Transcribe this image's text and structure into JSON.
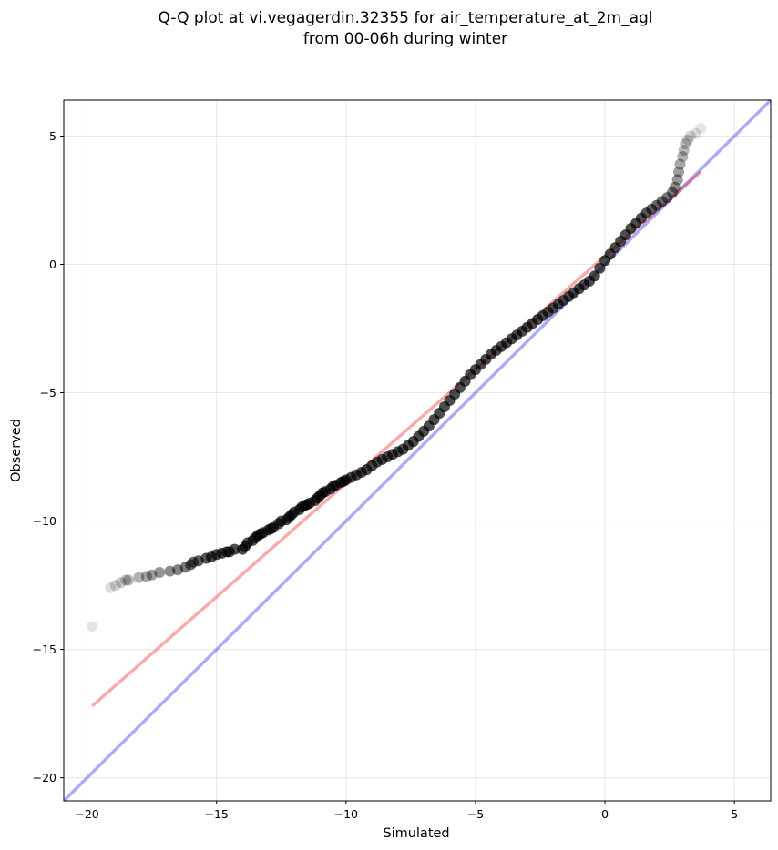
{
  "chart_data": {
    "type": "scatter",
    "title": "Q-Q plot at vi.vegagerdin.32355 for air_temperature_at_2m_agl",
    "subtitle": "from 00-06h during winter",
    "xlabel": "Simulated",
    "ylabel": "Observed",
    "xlim": [
      -20.9,
      6.4
    ],
    "ylim": [
      -20.9,
      6.4
    ],
    "xticks": [
      -20,
      -15,
      -10,
      -5,
      0,
      5
    ],
    "yticks": [
      -20,
      -15,
      -10,
      -5,
      0,
      5
    ],
    "xtick_labels": [
      "−20",
      "−15",
      "−10",
      "−5",
      "0",
      "5"
    ],
    "ytick_labels": [
      "−20",
      "−15",
      "−10",
      "−5",
      "0",
      "5"
    ],
    "grid": true,
    "colors": {
      "points": "#000000",
      "identity_line": "#0000ee",
      "fit_line": "#ee0000"
    },
    "identity_line": {
      "x": [
        -20.9,
        6.4
      ],
      "y": [
        -20.9,
        6.4
      ]
    },
    "fit_line": {
      "x": [
        -19.8,
        3.7
      ],
      "y": [
        -17.2,
        3.6
      ]
    },
    "points": {
      "x": [
        -19.8,
        -19.1,
        -18.9,
        -18.7,
        -18.5,
        -18.4,
        -18.0,
        -17.7,
        -17.5,
        -17.2,
        -16.8,
        -16.5,
        -16.2,
        -16.0,
        -15.9,
        -15.7,
        -15.4,
        -15.2,
        -15.0,
        -14.8,
        -14.6,
        -14.5,
        -14.3,
        -14.0,
        -13.9,
        -13.8,
        -13.6,
        -13.5,
        -13.4,
        -13.3,
        -13.2,
        -13.0,
        -12.9,
        -12.8,
        -12.6,
        -12.5,
        -12.3,
        -12.2,
        -12.1,
        -12.0,
        -11.8,
        -11.7,
        -11.6,
        -11.5,
        -11.4,
        -11.2,
        -11.1,
        -11.0,
        -10.9,
        -10.8,
        -10.6,
        -10.5,
        -10.4,
        -10.2,
        -10.1,
        -10.0,
        -9.8,
        -9.6,
        -9.4,
        -9.2,
        -9.0,
        -8.8,
        -8.6,
        -8.4,
        -8.2,
        -8.0,
        -7.8,
        -7.6,
        -7.4,
        -7.2,
        -7.0,
        -6.8,
        -6.6,
        -6.4,
        -6.2,
        -6.0,
        -5.8,
        -5.6,
        -5.4,
        -5.2,
        -5.0,
        -4.8,
        -4.6,
        -4.4,
        -4.2,
        -4.0,
        -3.8,
        -3.6,
        -3.4,
        -3.2,
        -3.0,
        -2.8,
        -2.6,
        -2.4,
        -2.2,
        -2.0,
        -1.8,
        -1.6,
        -1.4,
        -1.2,
        -1.0,
        -0.8,
        -0.6,
        -0.4,
        -0.2,
        0.0,
        0.2,
        0.4,
        0.6,
        0.8,
        1.0,
        1.2,
        1.4,
        1.6,
        1.8,
        2.0,
        2.2,
        2.4,
        2.6,
        2.7,
        2.8,
        2.85,
        2.9,
        3.0,
        3.05,
        3.1,
        3.2,
        3.3,
        3.5,
        3.7
      ],
      "y": [
        -14.1,
        -12.6,
        -12.5,
        -12.4,
        -12.3,
        -12.3,
        -12.2,
        -12.15,
        -12.1,
        -12.0,
        -11.95,
        -11.9,
        -11.8,
        -11.7,
        -11.6,
        -11.55,
        -11.45,
        -11.4,
        -11.3,
        -11.25,
        -11.2,
        -11.2,
        -11.1,
        -11.1,
        -11.0,
        -10.85,
        -10.75,
        -10.65,
        -10.55,
        -10.5,
        -10.45,
        -10.35,
        -10.3,
        -10.25,
        -10.1,
        -10.0,
        -9.95,
        -9.85,
        -9.75,
        -9.65,
        -9.55,
        -9.45,
        -9.4,
        -9.35,
        -9.3,
        -9.2,
        -9.1,
        -9.0,
        -8.9,
        -8.85,
        -8.75,
        -8.65,
        -8.6,
        -8.5,
        -8.45,
        -8.4,
        -8.3,
        -8.2,
        -8.1,
        -8.0,
        -7.85,
        -7.7,
        -7.6,
        -7.5,
        -7.4,
        -7.3,
        -7.2,
        -7.05,
        -6.9,
        -6.7,
        -6.5,
        -6.3,
        -6.05,
        -5.8,
        -5.55,
        -5.3,
        -5.05,
        -4.8,
        -4.55,
        -4.3,
        -4.1,
        -3.9,
        -3.7,
        -3.5,
        -3.35,
        -3.2,
        -3.05,
        -2.9,
        -2.75,
        -2.6,
        -2.45,
        -2.3,
        -2.15,
        -2.0,
        -1.85,
        -1.7,
        -1.55,
        -1.4,
        -1.25,
        -1.1,
        -0.95,
        -0.8,
        -0.65,
        -0.45,
        -0.15,
        0.15,
        0.4,
        0.65,
        0.9,
        1.15,
        1.4,
        1.6,
        1.8,
        2.0,
        2.15,
        2.3,
        2.45,
        2.6,
        2.8,
        3.0,
        3.3,
        3.6,
        3.9,
        4.2,
        4.45,
        4.7,
        4.85,
        5.0,
        5.1,
        5.3
      ]
    }
  }
}
